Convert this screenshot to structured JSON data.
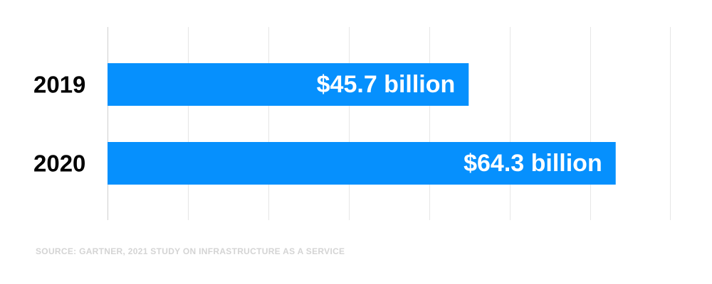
{
  "chart_data": {
    "type": "bar",
    "orientation": "horizontal",
    "categories": [
      "2019",
      "2020"
    ],
    "values": [
      45.7,
      64.3
    ],
    "data_labels": [
      "$45.7 billion",
      "$64.3 billion"
    ],
    "xlim": [
      0,
      70
    ],
    "grid": true,
    "bar_color": "#0690fd",
    "title": "",
    "xlabel": "",
    "ylabel": ""
  },
  "source": "SOURCE: GARTNER, 2021 STUDY ON INFRASTRUCTURE AS A SERVICE",
  "colors": {
    "gridline": "#e6e6e6",
    "source_text": "#d4d4d4",
    "category_text": "#000000",
    "data_label_text": "#ffffff"
  }
}
